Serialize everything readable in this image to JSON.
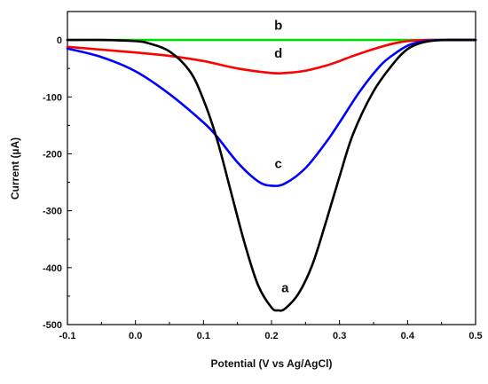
{
  "chart_data": {
    "type": "line",
    "title": "",
    "xlabel": "Potential (V vs Ag/AgCl)",
    "ylabel": "Current (µA)",
    "xlim": [
      -0.1,
      0.5
    ],
    "ylim": [
      -500,
      50
    ],
    "x_ticks": [
      -0.1,
      0.0,
      0.1,
      0.2,
      0.3,
      0.4,
      0.5
    ],
    "x_tick_labels": [
      "-0.1",
      "0.0",
      "0.1",
      "0.2",
      "0.3",
      "0.4",
      "0.5"
    ],
    "y_ticks": [
      0,
      -100,
      -200,
      -300,
      -400,
      -500
    ],
    "y_tick_labels": [
      "0",
      "-100",
      "-200",
      "-300",
      "-400",
      "-500"
    ],
    "grid": false,
    "legend": "none",
    "series": [
      {
        "name": "a",
        "color": "#000000",
        "x": [
          -0.1,
          -0.05,
          0.0,
          0.02,
          0.05,
          0.08,
          0.1,
          0.12,
          0.14,
          0.16,
          0.18,
          0.2,
          0.21,
          0.22,
          0.24,
          0.26,
          0.28,
          0.3,
          0.32,
          0.35,
          0.38,
          0.4,
          0.42,
          0.44,
          0.46,
          0.5
        ],
        "y": [
          0,
          0,
          -2,
          -6,
          -20,
          -55,
          -105,
          -175,
          -265,
          -355,
          -430,
          -470,
          -475,
          -472,
          -445,
          -395,
          -320,
          -240,
          -165,
          -90,
          -40,
          -16,
          -5,
          -1,
          0,
          0
        ]
      },
      {
        "name": "b",
        "color": "#00dd00",
        "x": [
          -0.1,
          0.0,
          0.1,
          0.2,
          0.3,
          0.4,
          0.5
        ],
        "y": [
          0,
          0,
          0,
          0,
          0,
          0,
          0
        ]
      },
      {
        "name": "c",
        "color": "#0000ff",
        "x": [
          -0.1,
          -0.05,
          0.0,
          0.05,
          0.1,
          0.12,
          0.15,
          0.18,
          0.2,
          0.22,
          0.25,
          0.28,
          0.3,
          0.33,
          0.36,
          0.38,
          0.4,
          0.42,
          0.45,
          0.5
        ],
        "y": [
          -15,
          -30,
          -55,
          -95,
          -145,
          -170,
          -215,
          -248,
          -256,
          -252,
          -225,
          -180,
          -145,
          -90,
          -45,
          -25,
          -10,
          -3,
          0,
          0
        ]
      },
      {
        "name": "d",
        "color": "#ff0000",
        "x": [
          -0.1,
          -0.05,
          0.0,
          0.05,
          0.1,
          0.15,
          0.2,
          0.22,
          0.25,
          0.28,
          0.3,
          0.32,
          0.35,
          0.38,
          0.4,
          0.43,
          0.45,
          0.5
        ],
        "y": [
          -12,
          -17,
          -22,
          -28,
          -37,
          -50,
          -58,
          -58,
          -54,
          -45,
          -37,
          -28,
          -16,
          -6,
          -2,
          0,
          0,
          0
        ]
      }
    ],
    "annotations": [
      {
        "text": "a",
        "x": 0.22,
        "y": -443
      },
      {
        "text": "b",
        "x": 0.21,
        "y": 18
      },
      {
        "text": "c",
        "x": 0.21,
        "y": -225
      },
      {
        "text": "d",
        "x": 0.21,
        "y": -31
      }
    ]
  }
}
